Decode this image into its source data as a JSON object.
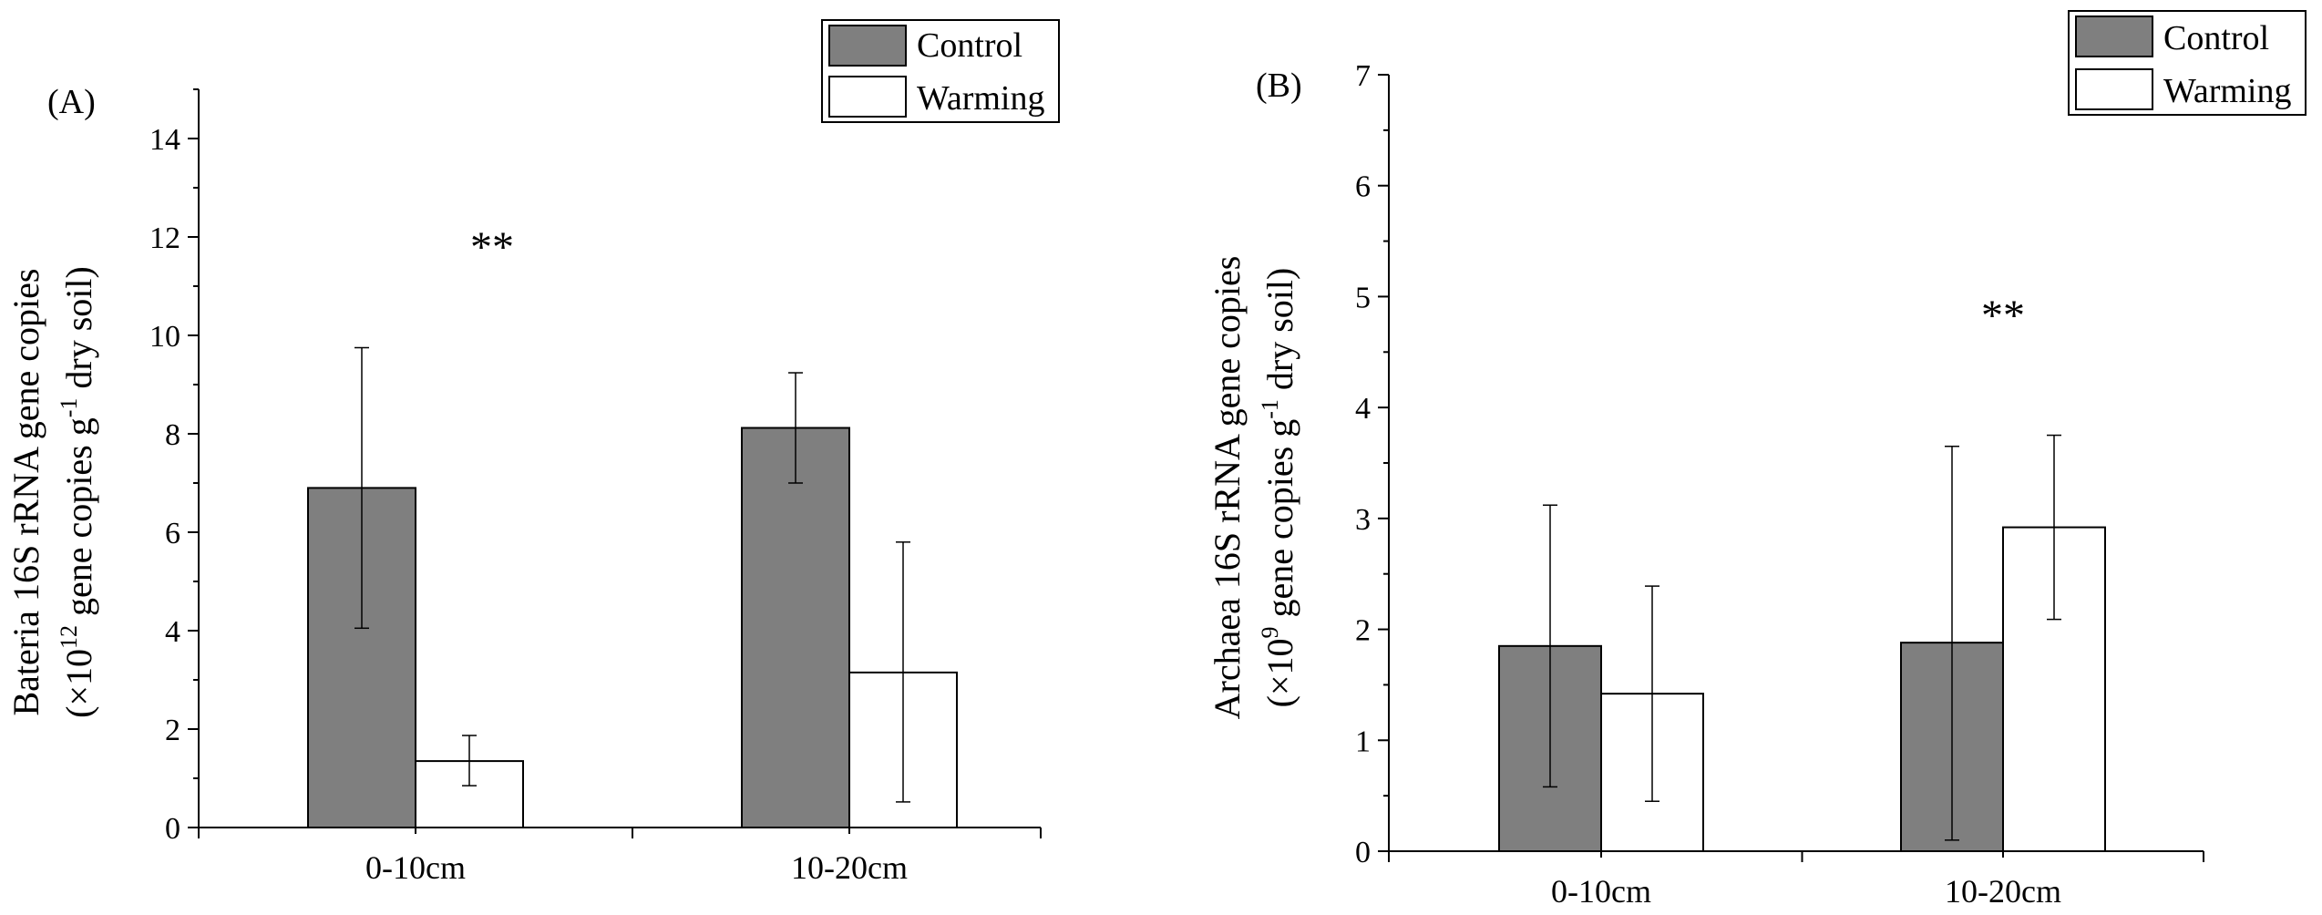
{
  "chart_data": [
    {
      "type": "bar",
      "panel": "(A)",
      "categories": [
        "0-10cm",
        "10-20cm"
      ],
      "series": [
        {
          "name": "Control",
          "color": "#7f7f7f",
          "values": [
            6.9,
            8.12
          ],
          "err_low": [
            4.05,
            7.0
          ],
          "err_high": [
            9.75,
            9.24
          ]
        },
        {
          "name": "Warming",
          "color": "#ffffff",
          "values": [
            1.35,
            3.15
          ],
          "err_low": [
            0.85,
            0.52
          ],
          "err_high": [
            1.87,
            5.8
          ]
        }
      ],
      "ylim": [
        0,
        15
      ],
      "yticks": [
        0,
        2,
        4,
        6,
        8,
        10,
        12,
        14
      ],
      "ylabel_line1": "Bateria 16S rRNA gene copies",
      "ylabel_line2_pre": "(×10",
      "ylabel_line2_exp": "12",
      "ylabel_line2_mid": " gene copies g",
      "ylabel_line2_exp2": "-1",
      "ylabel_line2_post": " dry soil)",
      "significance": [
        {
          "category": "0-10cm",
          "label": "**",
          "y": 11.5
        }
      ],
      "legend": [
        "Control",
        "Warming"
      ],
      "legend_position": "top-right"
    },
    {
      "type": "bar",
      "panel": "(B)",
      "categories": [
        "0-10cm",
        "10-20cm"
      ],
      "series": [
        {
          "name": "Control",
          "color": "#7f7f7f",
          "values": [
            1.85,
            1.88
          ],
          "err_low": [
            0.58,
            0.1
          ],
          "err_high": [
            3.12,
            3.65
          ]
        },
        {
          "name": "Warming",
          "color": "#ffffff",
          "values": [
            1.42,
            2.92
          ],
          "err_low": [
            0.45,
            2.09
          ],
          "err_high": [
            2.39,
            3.75
          ]
        }
      ],
      "ylim": [
        0,
        7
      ],
      "yticks": [
        0,
        1,
        2,
        3,
        4,
        5,
        6,
        7
      ],
      "ylabel_line1": "Archaea 16S rRNA gene copies",
      "ylabel_line2_pre": "(×10",
      "ylabel_line2_exp": "9",
      "ylabel_line2_mid": " gene copies g",
      "ylabel_line2_exp2": "-1",
      "ylabel_line2_post": " dry soil)",
      "significance": [
        {
          "category": "10-20cm",
          "label": "**",
          "y": 4.7
        }
      ],
      "legend": [
        "Control",
        "Warming"
      ],
      "legend_position": "top-right"
    }
  ]
}
